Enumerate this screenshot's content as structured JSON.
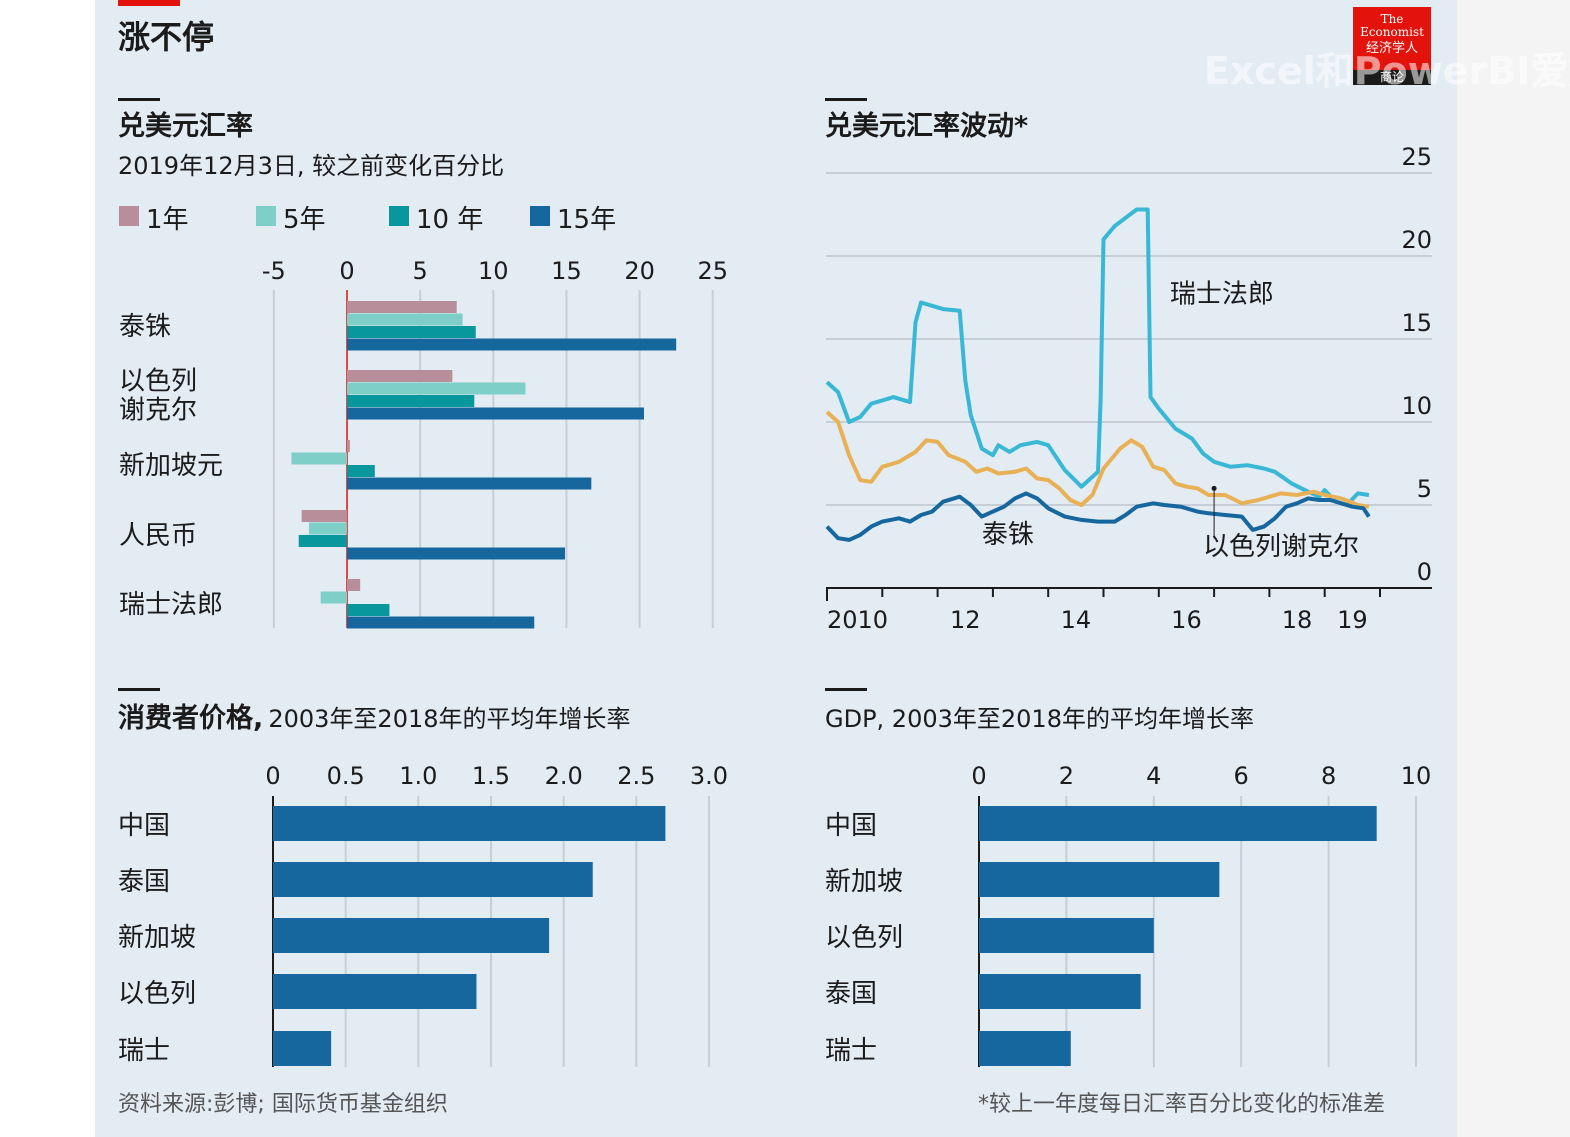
{
  "page": {
    "title": "涨不停",
    "logo_lines": [
      "The",
      "Economist",
      "经济学人",
      "商论"
    ],
    "watermark": "Excel和PowerBI爱好",
    "source": "资料来源:彭博; 国际货币基金组织",
    "footnote": "*较上一年度每日汇率百分比变化的标准差"
  },
  "colors": {
    "panel_bg": "#e3ebf3",
    "y1": "#b98e9b",
    "y5": "#7fcfc9",
    "y10": "#08979c",
    "y15": "#17679f",
    "chf_line": "#39b8d6",
    "ils_line": "#e9b155",
    "thb_line": "#17679f",
    "brand_red": "#e3120b"
  },
  "chart_data": [
    {
      "id": "fx-change",
      "type": "bar",
      "orientation": "horizontal",
      "title": "兑美元汇率",
      "subtitle": "2019年12月3日, 较之前变化百分比",
      "categories": [
        "泰铢",
        "以色列谢克尔",
        "新加坡元",
        "人民币",
        "瑞士法郎"
      ],
      "category_lines": [
        [
          "泰铢"
        ],
        [
          "以色列",
          "谢克尔"
        ],
        [
          "新加坡元"
        ],
        [
          "人民币"
        ],
        [
          "瑞士法郎"
        ]
      ],
      "series": [
        {
          "name": "1年",
          "values": [
            7.5,
            7.2,
            0.2,
            -3.1,
            0.9
          ]
        },
        {
          "name": "5年",
          "values": [
            7.9,
            12.2,
            -3.8,
            -2.6,
            -1.8
          ]
        },
        {
          "name": "10 年",
          "values": [
            8.8,
            8.7,
            1.9,
            -3.3,
            2.9
          ]
        },
        {
          "name": "15年",
          "values": [
            22.5,
            20.3,
            16.7,
            14.9,
            12.8
          ]
        }
      ],
      "xlim": [
        -5,
        25
      ],
      "xticks": [
        -5,
        0,
        5,
        10,
        15,
        20,
        25
      ]
    },
    {
      "id": "fx-volatility",
      "type": "line",
      "title": "兑美元汇率波动*",
      "ylim": [
        0,
        25
      ],
      "yticks": [
        0,
        5,
        10,
        15,
        20,
        25
      ],
      "xlim": [
        2010,
        2020
      ],
      "xticks": [
        2010,
        2011,
        2012,
        2013,
        2014,
        2015,
        2016,
        2017,
        2018,
        2019,
        2020
      ],
      "xtick_labels": [
        {
          "x": 2010,
          "label": "2010"
        },
        {
          "x": 2012.5,
          "label": "12"
        },
        {
          "x": 2014.5,
          "label": "14"
        },
        {
          "x": 2016.5,
          "label": "16"
        },
        {
          "x": 2018.5,
          "label": "18"
        },
        {
          "x": 2019.5,
          "label": "19"
        }
      ],
      "series": [
        {
          "name": "瑞士法郎",
          "points": [
            [
              2010,
              12.4
            ],
            [
              2010.2,
              11.8
            ],
            [
              2010.4,
              10.0
            ],
            [
              2010.6,
              10.3
            ],
            [
              2010.8,
              11.1
            ],
            [
              2011.0,
              11.3
            ],
            [
              2011.2,
              11.5
            ],
            [
              2011.5,
              11.2
            ],
            [
              2011.6,
              16.0
            ],
            [
              2011.7,
              17.2
            ],
            [
              2011.9,
              17.0
            ],
            [
              2012.1,
              16.8
            ],
            [
              2012.4,
              16.7
            ],
            [
              2012.5,
              12.5
            ],
            [
              2012.6,
              10.4
            ],
            [
              2012.8,
              8.4
            ],
            [
              2013.0,
              8.0
            ],
            [
              2013.1,
              8.6
            ],
            [
              2013.3,
              8.2
            ],
            [
              2013.5,
              8.6
            ],
            [
              2013.8,
              8.8
            ],
            [
              2014.0,
              8.6
            ],
            [
              2014.3,
              7.1
            ],
            [
              2014.6,
              6.1
            ],
            [
              2014.9,
              7.0
            ],
            [
              2014.95,
              11.5
            ],
            [
              2015.0,
              21.0
            ],
            [
              2015.2,
              21.8
            ],
            [
              2015.4,
              22.3
            ],
            [
              2015.6,
              22.8
            ],
            [
              2015.8,
              22.8
            ],
            [
              2015.85,
              11.5
            ],
            [
              2016.0,
              10.8
            ],
            [
              2016.3,
              9.6
            ],
            [
              2016.6,
              9.0
            ],
            [
              2016.8,
              8.1
            ],
            [
              2017.0,
              7.6
            ],
            [
              2017.3,
              7.3
            ],
            [
              2017.6,
              7.4
            ],
            [
              2017.9,
              7.2
            ],
            [
              2018.1,
              7.0
            ],
            [
              2018.4,
              6.3
            ],
            [
              2018.7,
              5.8
            ],
            [
              2018.9,
              5.5
            ],
            [
              2019.0,
              5.9
            ],
            [
              2019.2,
              5.2
            ],
            [
              2019.4,
              5.0
            ],
            [
              2019.6,
              5.7
            ],
            [
              2019.8,
              5.6
            ]
          ]
        },
        {
          "name": "以色列谢克尔",
          "points": [
            [
              2010,
              10.6
            ],
            [
              2010.2,
              10.0
            ],
            [
              2010.4,
              8.0
            ],
            [
              2010.6,
              6.5
            ],
            [
              2010.8,
              6.4
            ],
            [
              2011.0,
              7.3
            ],
            [
              2011.3,
              7.6
            ],
            [
              2011.6,
              8.2
            ],
            [
              2011.8,
              8.9
            ],
            [
              2012.0,
              8.8
            ],
            [
              2012.2,
              8.0
            ],
            [
              2012.5,
              7.6
            ],
            [
              2012.7,
              7.0
            ],
            [
              2012.9,
              7.2
            ],
            [
              2013.1,
              6.9
            ],
            [
              2013.4,
              7.0
            ],
            [
              2013.6,
              7.2
            ],
            [
              2013.8,
              6.6
            ],
            [
              2014.0,
              6.5
            ],
            [
              2014.2,
              6.0
            ],
            [
              2014.4,
              5.3
            ],
            [
              2014.6,
              5.0
            ],
            [
              2014.8,
              5.6
            ],
            [
              2015.0,
              7.2
            ],
            [
              2015.3,
              8.4
            ],
            [
              2015.5,
              8.9
            ],
            [
              2015.7,
              8.5
            ],
            [
              2015.9,
              7.3
            ],
            [
              2016.1,
              7.1
            ],
            [
              2016.3,
              6.3
            ],
            [
              2016.5,
              6.1
            ],
            [
              2016.7,
              6.0
            ],
            [
              2016.9,
              5.6
            ],
            [
              2017.2,
              5.6
            ],
            [
              2017.5,
              5.1
            ],
            [
              2017.8,
              5.3
            ],
            [
              2018.0,
              5.5
            ],
            [
              2018.2,
              5.7
            ],
            [
              2018.5,
              5.6
            ],
            [
              2018.8,
              5.8
            ],
            [
              2019.0,
              5.6
            ],
            [
              2019.3,
              5.4
            ],
            [
              2019.6,
              5.0
            ],
            [
              2019.8,
              4.9
            ]
          ]
        },
        {
          "name": "泰铢",
          "points": [
            [
              2010,
              3.7
            ],
            [
              2010.2,
              3.0
            ],
            [
              2010.4,
              2.9
            ],
            [
              2010.6,
              3.2
            ],
            [
              2010.8,
              3.7
            ],
            [
              2011.0,
              4.0
            ],
            [
              2011.3,
              4.2
            ],
            [
              2011.5,
              4.0
            ],
            [
              2011.7,
              4.4
            ],
            [
              2011.9,
              4.6
            ],
            [
              2012.1,
              5.2
            ],
            [
              2012.4,
              5.5
            ],
            [
              2012.6,
              5.0
            ],
            [
              2012.8,
              4.3
            ],
            [
              2013.0,
              4.6
            ],
            [
              2013.2,
              4.9
            ],
            [
              2013.4,
              5.4
            ],
            [
              2013.6,
              5.7
            ],
            [
              2013.8,
              5.4
            ],
            [
              2014.0,
              4.8
            ],
            [
              2014.3,
              4.3
            ],
            [
              2014.6,
              4.1
            ],
            [
              2014.9,
              4.0
            ],
            [
              2015.2,
              4.0
            ],
            [
              2015.4,
              4.4
            ],
            [
              2015.6,
              4.9
            ],
            [
              2015.9,
              5.1
            ],
            [
              2016.1,
              5.0
            ],
            [
              2016.4,
              4.9
            ],
            [
              2016.7,
              4.6
            ],
            [
              2016.9,
              4.5
            ],
            [
              2017.2,
              4.4
            ],
            [
              2017.5,
              4.3
            ],
            [
              2017.7,
              3.5
            ],
            [
              2017.9,
              3.7
            ],
            [
              2018.1,
              4.2
            ],
            [
              2018.3,
              4.9
            ],
            [
              2018.5,
              5.1
            ],
            [
              2018.7,
              5.4
            ],
            [
              2018.9,
              5.3
            ],
            [
              2019.1,
              5.3
            ],
            [
              2019.3,
              5.1
            ],
            [
              2019.5,
              4.9
            ],
            [
              2019.7,
              4.8
            ],
            [
              2019.8,
              4.3
            ]
          ]
        }
      ],
      "labels": [
        {
          "text": "瑞士法郎",
          "x": 2016.2,
          "y": 17.2
        },
        {
          "text": "泰铢",
          "x": 2012.8,
          "y": 2.7
        },
        {
          "text": "以色列谢克尔",
          "x": 2016.8,
          "y": 2.0
        }
      ],
      "marker": {
        "x": 2017.0,
        "y": 6.0
      }
    },
    {
      "id": "cpi-growth",
      "type": "bar",
      "orientation": "horizontal",
      "title": "消费者价格,",
      "subtitle": "2003年至2018年的平均年增长率",
      "categories": [
        "中国",
        "泰国",
        "新加坡",
        "以色列",
        "瑞士"
      ],
      "values": [
        2.7,
        2.2,
        1.9,
        1.4,
        0.4
      ],
      "xlim": [
        0,
        3.0
      ],
      "xticks": [
        0,
        0.5,
        1.0,
        1.5,
        2.0,
        2.5,
        3.0
      ],
      "xtick_labels": [
        "0",
        "0.5",
        "1.0",
        "1.5",
        "2.0",
        "2.5",
        "3.0"
      ]
    },
    {
      "id": "gdp-growth",
      "type": "bar",
      "orientation": "horizontal",
      "title": "GDP, 2003年至2018年的平均年增长率",
      "categories": [
        "中国",
        "新加坡",
        "以色列",
        "泰国",
        "瑞士"
      ],
      "values": [
        9.1,
        5.5,
        4.0,
        3.7,
        2.1
      ],
      "xlim": [
        0,
        10
      ],
      "xticks": [
        0,
        2,
        4,
        6,
        8,
        10
      ],
      "xtick_labels": [
        "0",
        "2",
        "4",
        "6",
        "8",
        "10"
      ]
    }
  ]
}
